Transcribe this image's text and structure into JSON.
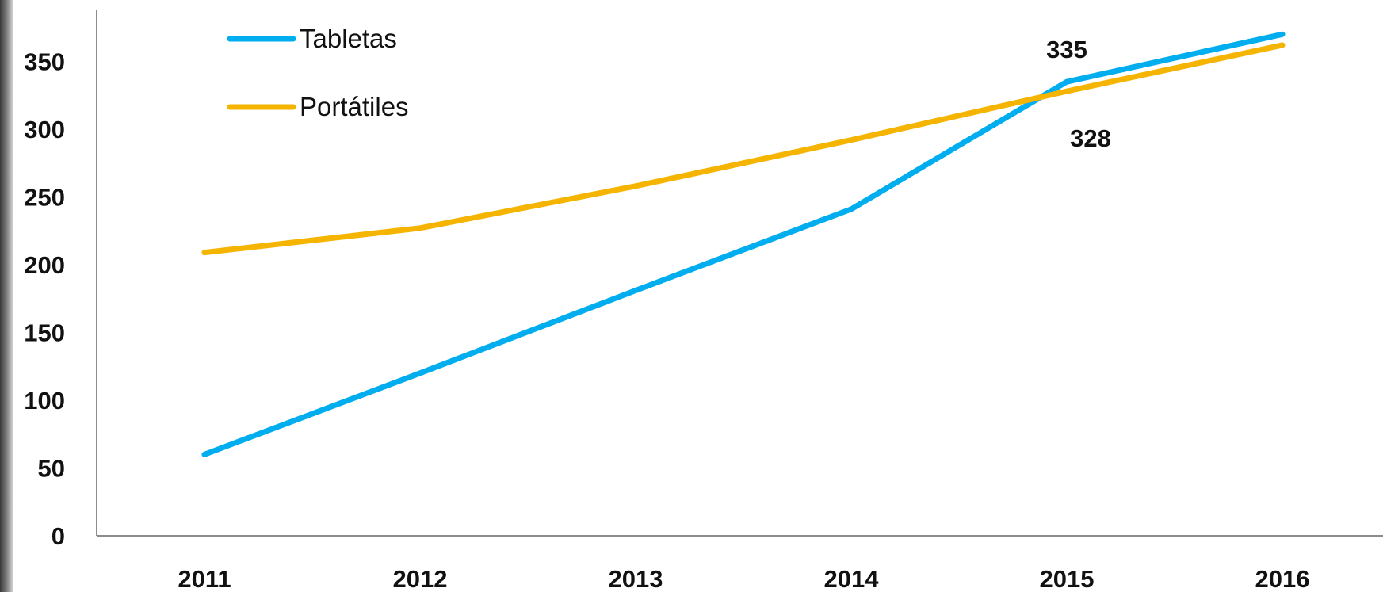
{
  "chart_data": {
    "type": "line",
    "title": "",
    "xlabel": "",
    "ylabel": "",
    "categories": [
      "2011",
      "2012",
      "2013",
      "2014",
      "2015",
      "2016"
    ],
    "ylim": [
      0,
      350
    ],
    "yticks": [
      0,
      50,
      100,
      150,
      200,
      250,
      300,
      350
    ],
    "grid": false,
    "legend_position": "top-left",
    "series": [
      {
        "name": "Tabletas",
        "color": "#00AEEF",
        "values": [
          60,
          120,
          181,
          241,
          335,
          370
        ]
      },
      {
        "name": "Portátiles",
        "color": "#F5B400",
        "values": [
          209,
          227,
          258,
          292,
          328,
          362
        ]
      }
    ],
    "annotations": [
      {
        "text": "335",
        "series": "Tabletas",
        "category": "2015"
      },
      {
        "text": "328",
        "series": "Portátiles",
        "category": "2015"
      }
    ]
  }
}
